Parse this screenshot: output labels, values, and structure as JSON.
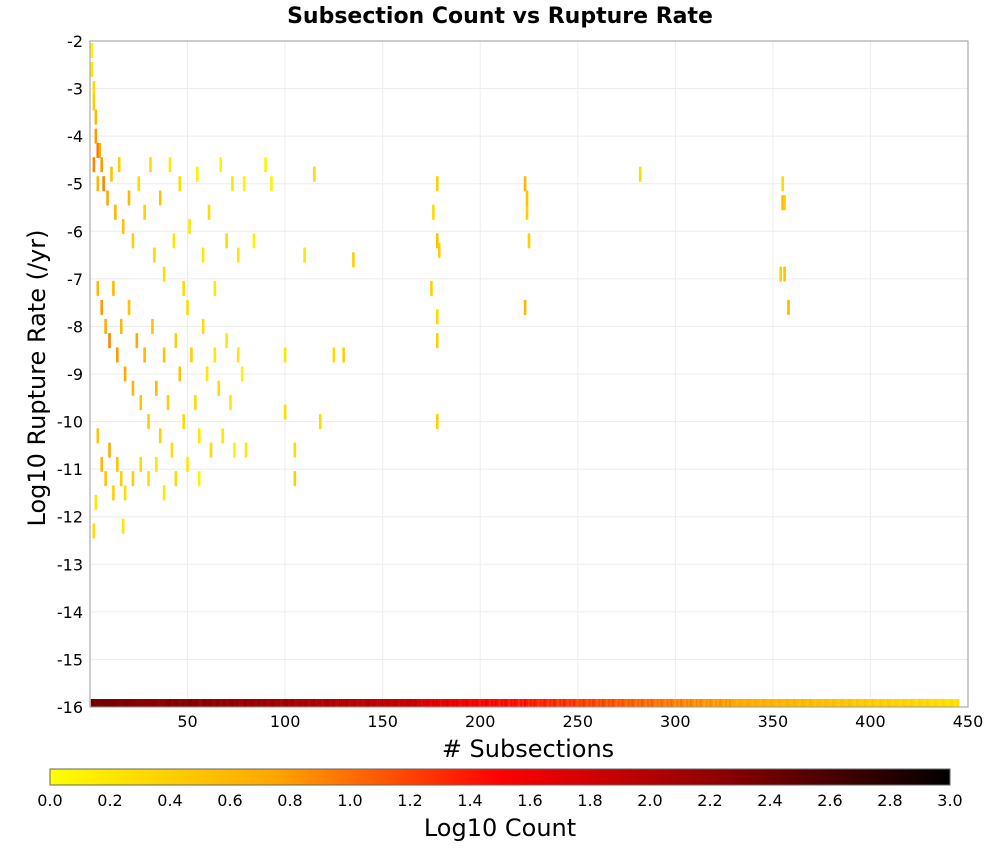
{
  "chart_data": {
    "type": "heatmap",
    "title": "Subsection Count vs Rupture Rate",
    "xlabel": "# Subsections",
    "ylabel": "Log10 Rupture Rate (/yr)",
    "xlim": [
      0,
      450
    ],
    "ylim": [
      -16,
      -2
    ],
    "x_ticks": [
      50,
      100,
      150,
      200,
      250,
      300,
      350,
      400,
      450
    ],
    "y_ticks": [
      -2,
      -3,
      -4,
      -5,
      -6,
      -7,
      -8,
      -9,
      -10,
      -11,
      -12,
      -13,
      -14,
      -15,
      -16
    ],
    "grid": true,
    "colorbar": {
      "label": "Log10 Count",
      "range": [
        0,
        3
      ],
      "ticks": [
        "0.0",
        "0.2",
        "0.4",
        "0.6",
        "0.8",
        "1.0",
        "1.2",
        "1.4",
        "1.6",
        "1.8",
        "2.0",
        "2.2",
        "2.4",
        "2.6",
        "2.8",
        "3.0"
      ],
      "colors": [
        "#ffff00",
        "#ffa500",
        "#ff0000",
        "#8b0000",
        "#000000"
      ]
    },
    "cells": [
      [
        1,
        -2.2,
        0.1
      ],
      [
        1,
        -2.6,
        0.2
      ],
      [
        2,
        -3.0,
        0.3
      ],
      [
        2,
        -3.3,
        0.4
      ],
      [
        3,
        -3.6,
        0.6
      ],
      [
        3,
        -4.0,
        0.8
      ],
      [
        4,
        -4.3,
        1.0
      ],
      [
        2,
        -4.6,
        0.9
      ],
      [
        5,
        -4.3,
        0.7
      ],
      [
        6,
        -4.6,
        0.8
      ],
      [
        4,
        -5.0,
        0.6
      ],
      [
        7,
        -5.0,
        0.9
      ],
      [
        9,
        -5.3,
        0.7
      ],
      [
        11,
        -4.8,
        0.5
      ],
      [
        13,
        -5.6,
        0.6
      ],
      [
        15,
        -4.6,
        0.4
      ],
      [
        17,
        -5.9,
        0.5
      ],
      [
        20,
        -5.3,
        0.6
      ],
      [
        22,
        -6.2,
        0.4
      ],
      [
        25,
        -5.0,
        0.3
      ],
      [
        28,
        -5.6,
        0.4
      ],
      [
        31,
        -4.6,
        0.3
      ],
      [
        33,
        -6.5,
        0.3
      ],
      [
        36,
        -5.3,
        0.5
      ],
      [
        38,
        -6.9,
        0.3
      ],
      [
        41,
        -4.6,
        0.2
      ],
      [
        43,
        -6.2,
        0.2
      ],
      [
        46,
        -5.0,
        0.3
      ],
      [
        48,
        -7.2,
        0.3
      ],
      [
        51,
        -5.9,
        0.2
      ],
      [
        55,
        -4.8,
        0.1
      ],
      [
        58,
        -6.5,
        0.2
      ],
      [
        61,
        -5.6,
        0.3
      ],
      [
        64,
        -7.2,
        0.2
      ],
      [
        67,
        -4.6,
        0.1
      ],
      [
        70,
        -6.2,
        0.3
      ],
      [
        73,
        -5.0,
        0.2
      ],
      [
        76,
        -6.5,
        0.2
      ],
      [
        79,
        -5.0,
        0.1
      ],
      [
        84,
        -6.2,
        0.1
      ],
      [
        90,
        -4.6,
        0.1
      ],
      [
        93,
        -5.0,
        0.1
      ],
      [
        110,
        -6.5,
        0.2
      ],
      [
        115,
        -4.8,
        0.3
      ],
      [
        135,
        -6.6,
        0.4
      ],
      [
        4,
        -7.2,
        0.6
      ],
      [
        6,
        -7.6,
        0.8
      ],
      [
        8,
        -8.0,
        0.7
      ],
      [
        10,
        -8.3,
        0.9
      ],
      [
        12,
        -7.2,
        0.6
      ],
      [
        14,
        -8.6,
        0.8
      ],
      [
        16,
        -8.0,
        0.6
      ],
      [
        18,
        -9.0,
        0.7
      ],
      [
        20,
        -7.6,
        0.5
      ],
      [
        22,
        -9.3,
        0.6
      ],
      [
        24,
        -8.3,
        0.7
      ],
      [
        26,
        -9.6,
        0.5
      ],
      [
        28,
        -8.6,
        0.6
      ],
      [
        30,
        -10.0,
        0.4
      ],
      [
        32,
        -8.0,
        0.5
      ],
      [
        34,
        -9.3,
        0.6
      ],
      [
        36,
        -10.3,
        0.4
      ],
      [
        38,
        -8.6,
        0.5
      ],
      [
        40,
        -9.6,
        0.4
      ],
      [
        42,
        -10.6,
        0.3
      ],
      [
        44,
        -8.3,
        0.4
      ],
      [
        46,
        -9.0,
        0.5
      ],
      [
        48,
        -10.0,
        0.3
      ],
      [
        50,
        -7.6,
        0.3
      ],
      [
        52,
        -8.6,
        0.4
      ],
      [
        54,
        -9.6,
        0.3
      ],
      [
        56,
        -10.3,
        0.2
      ],
      [
        58,
        -8.0,
        0.3
      ],
      [
        60,
        -9.0,
        0.2
      ],
      [
        62,
        -10.6,
        0.3
      ],
      [
        64,
        -8.6,
        0.2
      ],
      [
        66,
        -9.3,
        0.3
      ],
      [
        68,
        -10.3,
        0.2
      ],
      [
        70,
        -8.3,
        0.2
      ],
      [
        72,
        -9.6,
        0.2
      ],
      [
        74,
        -10.6,
        0.1
      ],
      [
        76,
        -8.6,
        0.2
      ],
      [
        78,
        -9.0,
        0.1
      ],
      [
        80,
        -10.6,
        0.2
      ],
      [
        4,
        -10.3,
        0.5
      ],
      [
        6,
        -10.9,
        0.6
      ],
      [
        8,
        -11.2,
        0.5
      ],
      [
        10,
        -10.6,
        0.7
      ],
      [
        12,
        -11.5,
        0.4
      ],
      [
        14,
        -10.9,
        0.5
      ],
      [
        16,
        -11.2,
        0.4
      ],
      [
        18,
        -11.5,
        0.3
      ],
      [
        22,
        -11.2,
        0.4
      ],
      [
        26,
        -10.9,
        0.3
      ],
      [
        30,
        -11.2,
        0.3
      ],
      [
        34,
        -10.9,
        0.2
      ],
      [
        38,
        -11.5,
        0.2
      ],
      [
        44,
        -11.2,
        0.3
      ],
      [
        50,
        -10.9,
        0.2
      ],
      [
        56,
        -11.2,
        0.1
      ],
      [
        3,
        -11.7,
        0.2
      ],
      [
        2,
        -12.3,
        0.3
      ],
      [
        17,
        -12.2,
        0.2
      ],
      [
        100,
        -8.6,
        0.2
      ],
      [
        100,
        -9.8,
        0.3
      ],
      [
        105,
        -10.6,
        0.3
      ],
      [
        105,
        -11.2,
        0.4
      ],
      [
        118,
        -10.0,
        0.3
      ],
      [
        125,
        -8.6,
        0.3
      ],
      [
        130,
        -8.6,
        0.4
      ],
      [
        175,
        -7.2,
        0.4
      ],
      [
        176,
        -5.6,
        0.3
      ],
      [
        178,
        -5.0,
        0.4
      ],
      [
        178,
        -6.2,
        0.5
      ],
      [
        179,
        -6.4,
        0.4
      ],
      [
        178,
        -7.8,
        0.3
      ],
      [
        178,
        -8.3,
        0.4
      ],
      [
        178,
        -10.0,
        0.4
      ],
      [
        223,
        -5.0,
        0.6
      ],
      [
        224,
        -5.3,
        0.5
      ],
      [
        224,
        -5.6,
        0.4
      ],
      [
        225,
        -6.2,
        0.4
      ],
      [
        223,
        -7.6,
        0.6
      ],
      [
        282,
        -4.8,
        0.3
      ],
      [
        355,
        -5.0,
        0.3
      ],
      [
        355,
        -5.4,
        0.6
      ],
      [
        356,
        -5.4,
        0.4
      ],
      [
        354,
        -6.9,
        0.4
      ],
      [
        356,
        -6.9,
        0.5
      ],
      [
        358,
        -7.6,
        0.6
      ]
    ]
  }
}
